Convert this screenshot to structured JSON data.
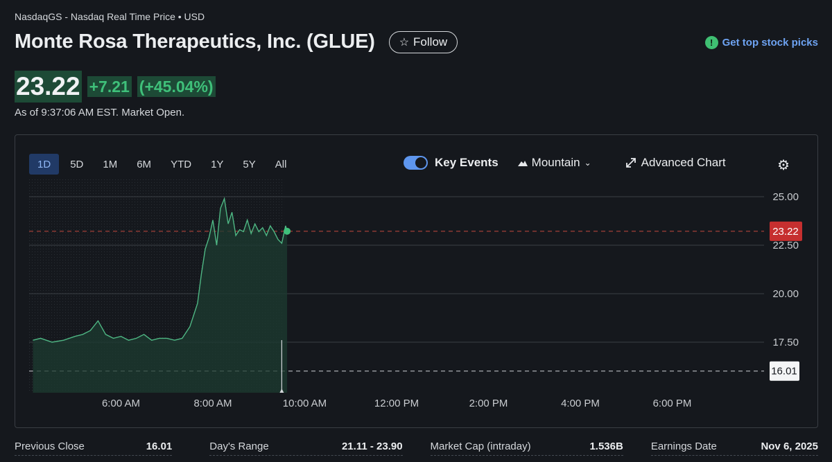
{
  "header": {
    "exchange": "NasdaqGS - Nasdaq Real Time Price • USD",
    "title": "Monte Rosa Therapeutics, Inc. (GLUE)",
    "follow_label": "Follow",
    "picks_label": "Get top stock picks"
  },
  "quote": {
    "price": "23.22",
    "change": "+7.21",
    "change_pct": "(+45.04%)",
    "as_of": "As of 9:37:06 AM EST. Market Open."
  },
  "chart_controls": {
    "ranges": [
      "1D",
      "5D",
      "1M",
      "6M",
      "YTD",
      "1Y",
      "5Y",
      "All"
    ],
    "active_range": "1D",
    "key_events_label": "Key Events",
    "key_events_on": true,
    "chart_type_label": "Mountain",
    "advanced_label": "Advanced Chart"
  },
  "colors": {
    "up": "#3fc07a",
    "line": "#4fb784",
    "current_tag": "#c62f2f",
    "accent": "#5e96ee"
  },
  "chart_data": {
    "type": "area",
    "x_tick_labels": [
      "6:00 AM",
      "8:00 AM",
      "10:00 AM",
      "12:00 PM",
      "2:00 PM",
      "4:00 PM",
      "6:00 PM"
    ],
    "y_tick_labels": [
      "25.00",
      "22.50",
      "20.00",
      "17.50"
    ],
    "ylim": [
      15.0,
      26.5
    ],
    "current_price_label": "23.22",
    "previous_close_label": "16.01",
    "current_price": 23.22,
    "previous_close": 16.01,
    "series": [
      {
        "x": [
          "4:05",
          "4:15",
          "4:30",
          "4:45",
          "5:00",
          "5:10",
          "5:20",
          "5:30",
          "5:40",
          "5:50",
          "6:00",
          "6:10",
          "6:20",
          "6:30",
          "6:40",
          "6:50",
          "7:00",
          "7:10",
          "7:20",
          "7:30",
          "7:40",
          "7:45",
          "7:50",
          "7:55",
          "8:00",
          "8:05",
          "8:10",
          "8:15",
          "8:20",
          "8:25",
          "8:30",
          "8:35",
          "8:40",
          "8:45",
          "8:50",
          "8:55",
          "9:00",
          "9:05",
          "9:10",
          "9:15",
          "9:20",
          "9:25",
          "9:30",
          "9:35",
          "9:37"
        ],
        "y": [
          17.6,
          17.7,
          17.5,
          17.6,
          17.8,
          17.9,
          18.1,
          18.6,
          17.9,
          17.7,
          17.8,
          17.6,
          17.7,
          17.9,
          17.6,
          17.7,
          17.7,
          17.6,
          17.7,
          18.3,
          19.5,
          21.0,
          22.3,
          22.9,
          23.8,
          22.5,
          24.4,
          24.9,
          23.6,
          24.2,
          23.0,
          23.3,
          23.2,
          23.8,
          23.1,
          23.6,
          23.2,
          23.4,
          23.0,
          23.5,
          23.2,
          22.8,
          22.6,
          23.5,
          23.22
        ]
      }
    ],
    "x_range": [
      "4:00",
      "20:00"
    ],
    "grid": true
  },
  "stats": [
    {
      "label": "Previous Close",
      "value": "16.01"
    },
    {
      "label": "Day's Range",
      "value": "21.11 - 23.90"
    },
    {
      "label": "Market Cap (intraday)",
      "value": "1.536B"
    },
    {
      "label": "Earnings Date",
      "value": "Nov 6, 2025"
    }
  ]
}
